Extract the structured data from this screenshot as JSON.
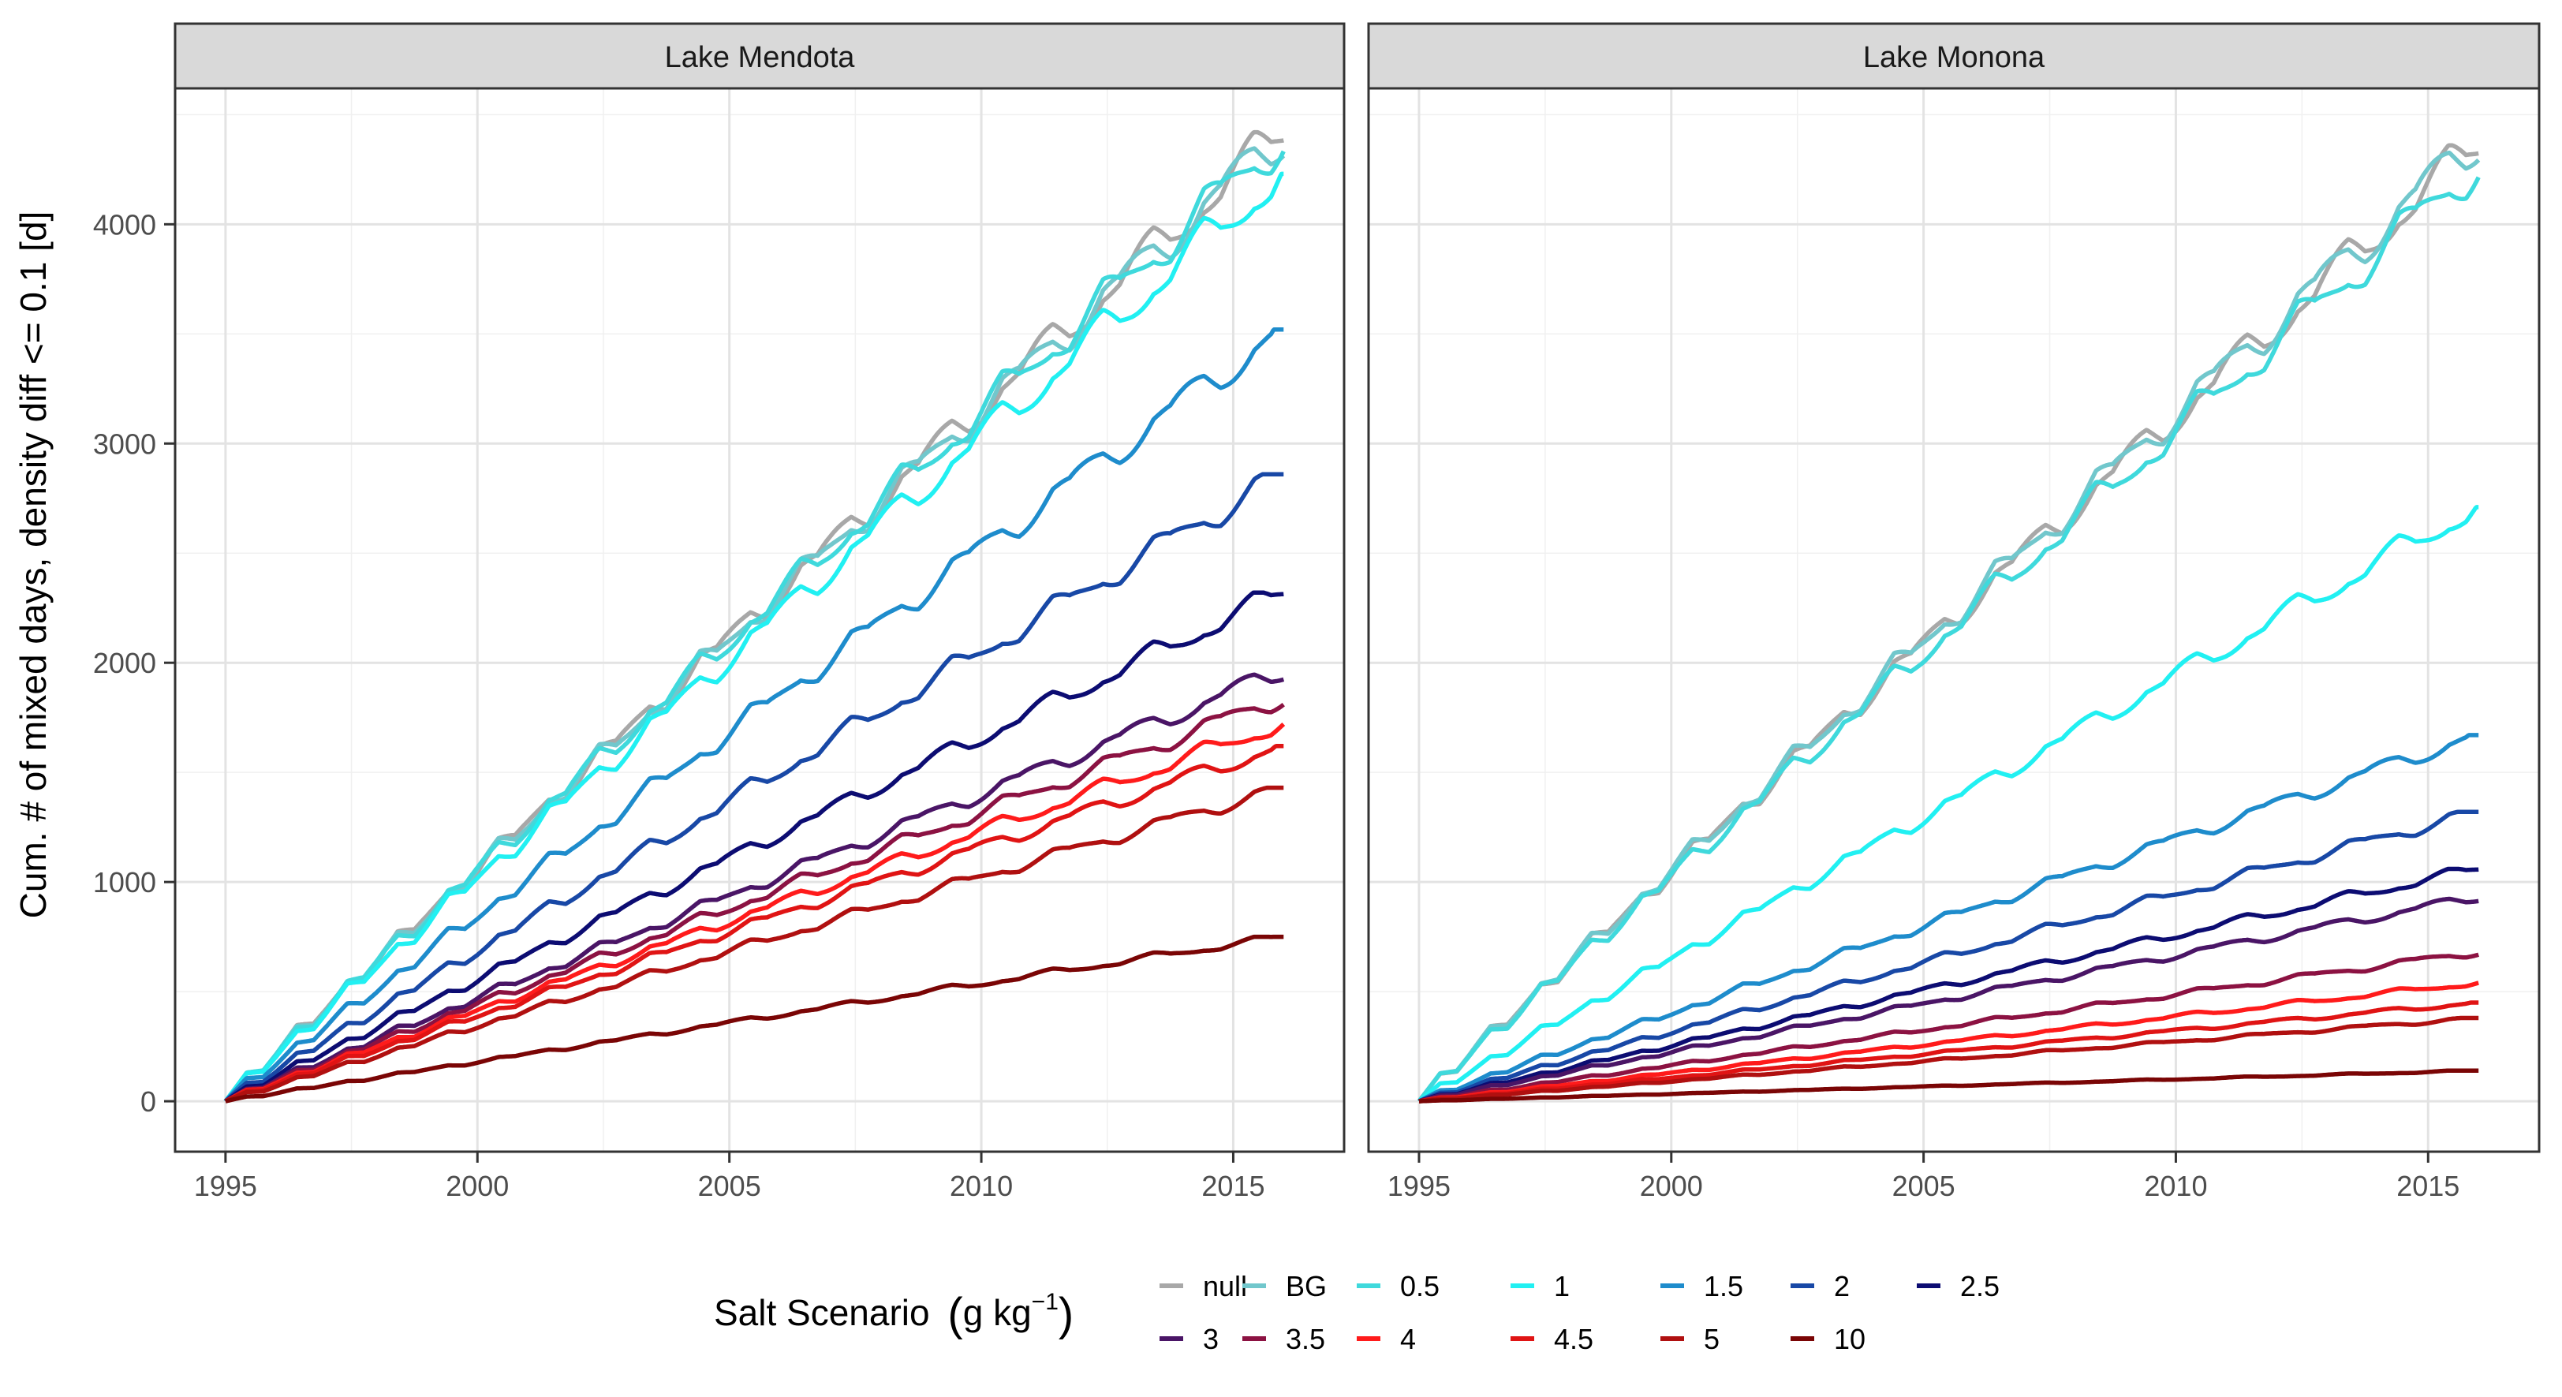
{
  "chart_data": {
    "type": "line",
    "ylabel": "Cum. # of mixed days, density diff <= 0.1 [d]",
    "xlabel": "",
    "x_ticks": [
      1995,
      2000,
      2005,
      2010,
      2015
    ],
    "y_ticks": [
      0,
      1000,
      2000,
      3000,
      4000
    ],
    "xlim": [
      1994,
      2017.2
    ],
    "ylim": [
      -230,
      4620
    ],
    "legend": {
      "title": "Salt Scenario",
      "unit": "g kg",
      "unit_sup": "−1",
      "position": "bottom"
    },
    "scenarios": [
      {
        "name": "null",
        "color": "#a8a8a8"
      },
      {
        "name": "BG",
        "color": "#71c7cc"
      },
      {
        "name": "0.5",
        "color": "#3fd9dc"
      },
      {
        "name": "1",
        "color": "#21f0f2"
      },
      {
        "name": "1.5",
        "color": "#1e8ccc"
      },
      {
        "name": "2",
        "color": "#1848a6"
      },
      {
        "name": "2.5",
        "color": "#0c0c72"
      },
      {
        "name": "3",
        "color": "#4a1566"
      },
      {
        "name": "3.5",
        "color": "#8c1242"
      },
      {
        "name": "4",
        "color": "#ff1b1b"
      },
      {
        "name": "4.5",
        "color": "#e01414"
      },
      {
        "name": "5",
        "color": "#b01010"
      },
      {
        "name": "10",
        "color": "#7a0505"
      }
    ],
    "panels": [
      {
        "title": "Lake Mendota",
        "series": [
          {
            "name": "null",
            "start": 1995.0,
            "end": 2016.0,
            "final": 4420
          },
          {
            "name": "BG",
            "start": 1995.0,
            "end": 2016.0,
            "final": 4400
          },
          {
            "name": "0.5",
            "start": 1995.0,
            "end": 2016.0,
            "final": 4390
          },
          {
            "name": "1",
            "start": 1995.0,
            "end": 2016.0,
            "final": 4230
          },
          {
            "name": "1.5",
            "start": 1995.0,
            "end": 2016.0,
            "final": 3520
          },
          {
            "name": "2",
            "start": 1995.0,
            "end": 2016.0,
            "final": 2860
          },
          {
            "name": "2.5",
            "start": 1995.0,
            "end": 2016.0,
            "final": 2320
          },
          {
            "name": "3",
            "start": 1995.0,
            "end": 2016.0,
            "final": 1960
          },
          {
            "name": "3.5",
            "start": 1995.0,
            "end": 2016.0,
            "final": 1840
          },
          {
            "name": "4",
            "start": 1995.0,
            "end": 2016.0,
            "final": 1720
          },
          {
            "name": "4.5",
            "start": 1995.0,
            "end": 2016.0,
            "final": 1620
          },
          {
            "name": "5",
            "start": 1995.0,
            "end": 2016.0,
            "final": 1430
          },
          {
            "name": "10",
            "start": 1995.0,
            "end": 2016.0,
            "final": 750
          }
        ]
      },
      {
        "title": "Lake Monona",
        "series": [
          {
            "name": "null",
            "start": 1995.0,
            "end": 2016.0,
            "final": 4360
          },
          {
            "name": "BG",
            "start": 1995.0,
            "end": 2016.0,
            "final": 4380
          },
          {
            "name": "0.5",
            "start": 1995.0,
            "end": 2016.0,
            "final": 4270
          },
          {
            "name": "1",
            "start": 1995.0,
            "end": 2016.0,
            "final": 2710
          },
          {
            "name": "1.5",
            "start": 1995.0,
            "end": 2016.0,
            "final": 1670
          },
          {
            "name": "2",
            "start": 1995.0,
            "end": 2016.0,
            "final": 1320
          },
          {
            "name": "2.5",
            "start": 1995.0,
            "end": 2016.0,
            "final": 1060
          },
          {
            "name": "3",
            "start": 1995.0,
            "end": 2016.0,
            "final": 930
          },
          {
            "name": "3.5",
            "start": 1995.0,
            "end": 2016.0,
            "final": 680
          },
          {
            "name": "4",
            "start": 1995.0,
            "end": 2016.0,
            "final": 540
          },
          {
            "name": "4.5",
            "start": 1995.0,
            "end": 2016.0,
            "final": 450
          },
          {
            "name": "5",
            "start": 1995.0,
            "end": 2016.0,
            "final": 380
          },
          {
            "name": "10",
            "start": 1995.0,
            "end": 2016.0,
            "final": 140
          }
        ]
      }
    ]
  }
}
